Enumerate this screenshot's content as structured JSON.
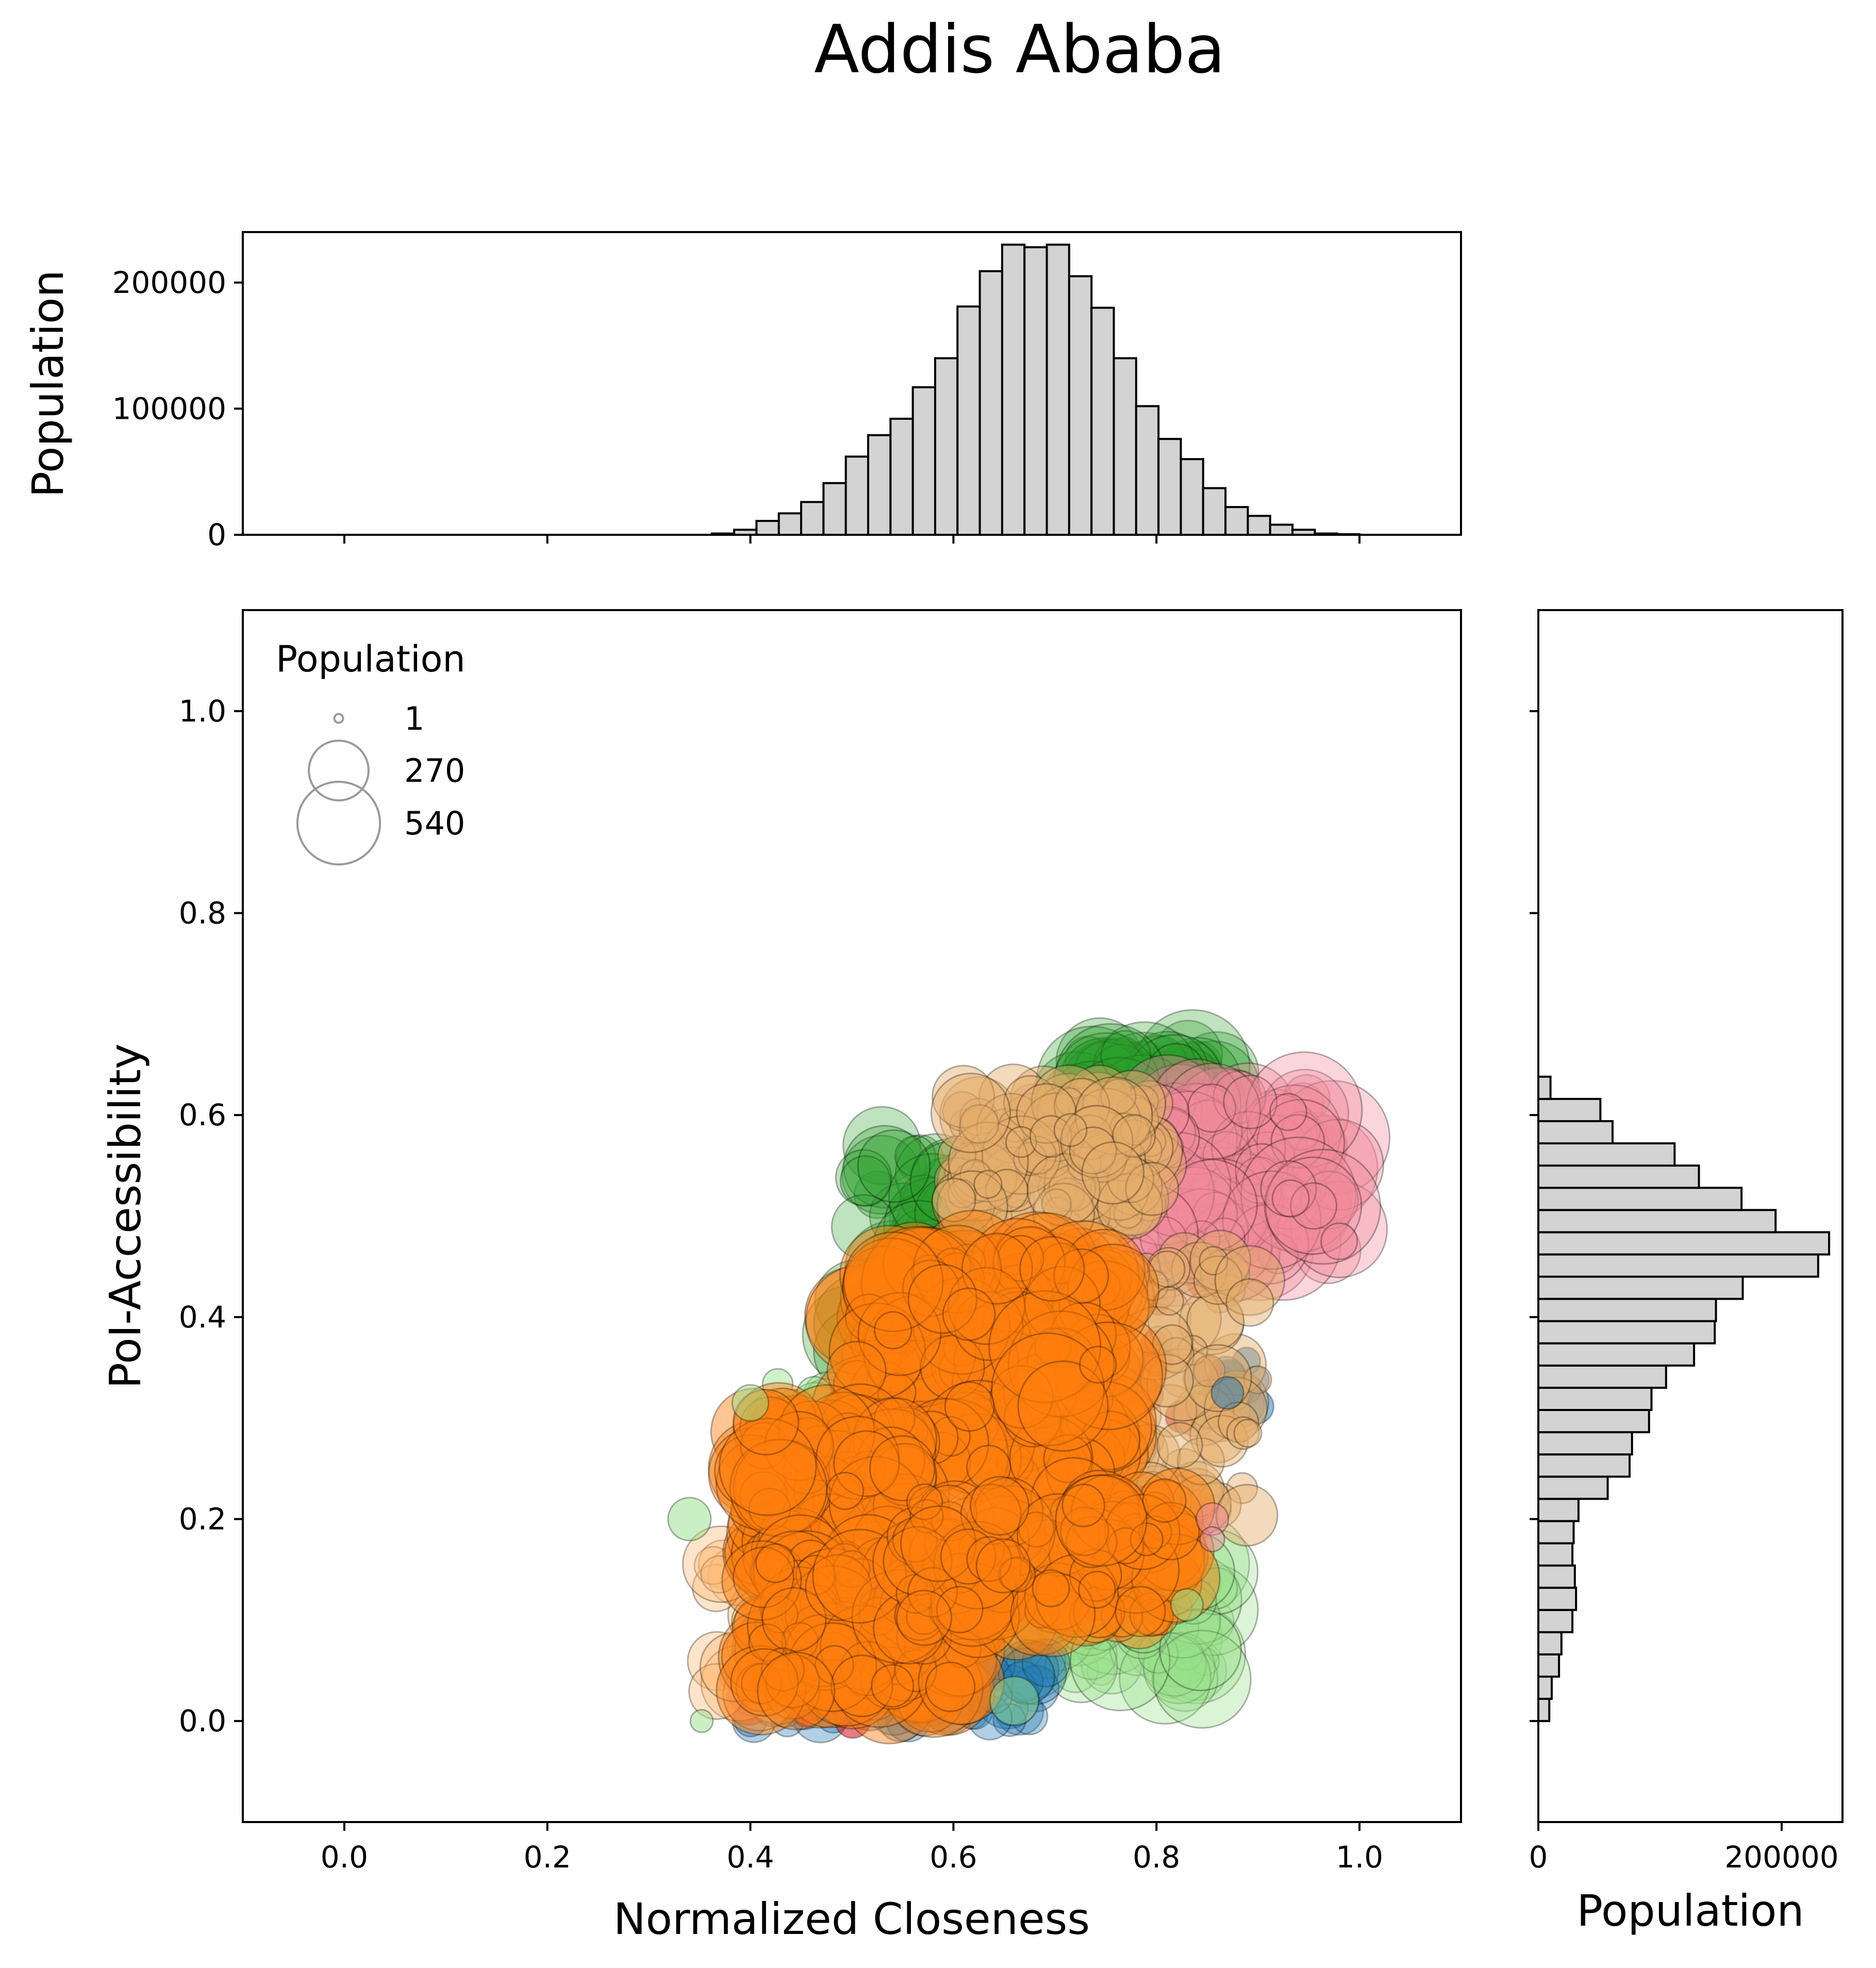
{
  "title": "Addis Ababa",
  "chart_data": [
    {
      "type": "scatter",
      "name": "main-scatter",
      "xlabel": "Normalized Closeness",
      "ylabel": "PoI-Accessibility",
      "xlim": [
        -0.1,
        1.1
      ],
      "ylim": [
        -0.1,
        1.1
      ],
      "xticks": [
        0.0,
        0.2,
        0.4,
        0.6,
        0.8,
        1.0
      ],
      "yticks": [
        0.0,
        0.2,
        0.4,
        0.6,
        0.8,
        1.0
      ],
      "grid": false,
      "legend": {
        "title": "Population",
        "placement": "top-left",
        "entries": [
          {
            "label": "1",
            "value": 1
          },
          {
            "label": "270",
            "value": 270
          },
          {
            "label": "540",
            "value": 540
          }
        ]
      },
      "colors": [
        "#ff7f0e",
        "#2ca02c",
        "#1f77b4",
        "#d62728",
        "#ffbb78",
        "#98df8a",
        "#ff9896",
        "#e5ae6b",
        "#f08a9a"
      ],
      "clusters": [
        {
          "color": "#2ca02c",
          "alpha": 0.3,
          "x": [
            0.72,
            0.86
          ],
          "y": [
            0.6,
            0.66
          ],
          "size": [
            60,
            520
          ],
          "count": 60
        },
        {
          "color": "#2ca02c",
          "alpha": 0.3,
          "x": [
            0.5,
            0.6
          ],
          "y": [
            0.36,
            0.58
          ],
          "size": [
            40,
            400
          ],
          "count": 60
        },
        {
          "color": "#98df8a",
          "alpha": 0.35,
          "x": [
            0.66,
            0.86
          ],
          "y": [
            0.04,
            0.16
          ],
          "size": [
            20,
            400
          ],
          "count": 90
        },
        {
          "color": "#98df8a",
          "alpha": 0.45,
          "x": [
            0.42,
            0.48
          ],
          "y": [
            0.26,
            0.34
          ],
          "size": [
            20,
            120
          ],
          "count": 20
        },
        {
          "color": "#1f77b4",
          "alpha": 0.35,
          "x": [
            0.4,
            0.7
          ],
          "y": [
            0.0,
            0.06
          ],
          "size": [
            30,
            160
          ],
          "count": 80
        },
        {
          "color": "#1f77b4",
          "alpha": 0.5,
          "x": [
            0.84,
            0.9
          ],
          "y": [
            0.3,
            0.36
          ],
          "size": [
            20,
            60
          ],
          "count": 15
        },
        {
          "color": "#d62728",
          "alpha": 0.6,
          "x": [
            0.38,
            0.58
          ],
          "y": [
            0.0,
            0.08
          ],
          "size": [
            10,
            100
          ],
          "count": 40
        },
        {
          "color": "#d62728",
          "alpha": 0.6,
          "x": [
            0.56,
            0.86
          ],
          "y": [
            0.3,
            0.48
          ],
          "size": [
            10,
            60
          ],
          "count": 35
        },
        {
          "color": "#f08a9a",
          "alpha": 0.35,
          "x": [
            0.78,
            0.98
          ],
          "y": [
            0.46,
            0.62
          ],
          "size": [
            40,
            540
          ],
          "count": 120
        },
        {
          "color": "#e5ae6b",
          "alpha": 0.45,
          "x": [
            0.6,
            0.8
          ],
          "y": [
            0.5,
            0.62
          ],
          "size": [
            20,
            240
          ],
          "count": 140
        },
        {
          "color": "#e5ae6b",
          "alpha": 0.45,
          "x": [
            0.74,
            0.9
          ],
          "y": [
            0.2,
            0.46
          ],
          "size": [
            20,
            200
          ],
          "count": 90
        },
        {
          "color": "#ffbb78",
          "alpha": 0.4,
          "x": [
            0.36,
            0.44
          ],
          "y": [
            0.02,
            0.16
          ],
          "size": [
            40,
            220
          ],
          "count": 30
        },
        {
          "color": "#ff7f0e",
          "alpha": 0.45,
          "x": [
            0.5,
            0.76
          ],
          "y": [
            0.24,
            0.46
          ],
          "size": [
            40,
            520
          ],
          "count": 220
        },
        {
          "color": "#ff7f0e",
          "alpha": 0.45,
          "x": [
            0.4,
            0.56
          ],
          "y": [
            0.14,
            0.3
          ],
          "size": [
            40,
            380
          ],
          "count": 140
        },
        {
          "color": "#ff7f0e",
          "alpha": 0.45,
          "x": [
            0.4,
            0.62
          ],
          "y": [
            0.02,
            0.16
          ],
          "size": [
            40,
            400
          ],
          "count": 150
        },
        {
          "color": "#ff7f0e",
          "alpha": 0.45,
          "x": [
            0.56,
            0.82
          ],
          "y": [
            0.1,
            0.22
          ],
          "size": [
            30,
            320
          ],
          "count": 140
        }
      ],
      "outliers": [
        {
          "x": 0.34,
          "y": 0.2,
          "value": 60,
          "color": "#98df8a"
        },
        {
          "x": 0.352,
          "y": 0.0,
          "value": 12,
          "color": "#98df8a"
        },
        {
          "x": 0.98,
          "y": 0.475,
          "value": 40,
          "color": "#f08a9a"
        },
        {
          "x": 0.89,
          "y": 0.285,
          "value": 20,
          "color": "#e5ae6b"
        },
        {
          "x": 0.855,
          "y": 0.2,
          "value": 30,
          "color": "#f08a9a"
        },
        {
          "x": 0.855,
          "y": 0.18,
          "value": 15,
          "color": "#f08a9a"
        },
        {
          "x": 0.83,
          "y": 0.115,
          "value": 30,
          "color": "#98df8a"
        },
        {
          "x": 0.87,
          "y": 0.325,
          "value": 30,
          "color": "#1f77b4"
        },
        {
          "x": 0.4,
          "y": 0.315,
          "value": 40,
          "color": "#98df8a"
        },
        {
          "x": 0.66,
          "y": 0.02,
          "value": 80,
          "color": "#98df8a"
        }
      ]
    },
    {
      "type": "bar",
      "name": "top-histogram",
      "orientation": "vertical",
      "ylabel": "Population",
      "xlim": [
        -0.1,
        1.1
      ],
      "ylim": [
        0,
        240000
      ],
      "yticks": [
        0,
        100000,
        200000
      ],
      "bar_color": "#d3d3d3",
      "bin_width": 0.022,
      "bin_starts": [
        0.362,
        0.384,
        0.406,
        0.428,
        0.45,
        0.472,
        0.494,
        0.516,
        0.538,
        0.56,
        0.582,
        0.604,
        0.626,
        0.648,
        0.67,
        0.692,
        0.714,
        0.736,
        0.758,
        0.78,
        0.802,
        0.824,
        0.846,
        0.868,
        0.89,
        0.912,
        0.934,
        0.956,
        0.978
      ],
      "values": [
        1000,
        4000,
        11000,
        17000,
        26000,
        41000,
        62000,
        79000,
        92000,
        117000,
        140000,
        181000,
        209000,
        230000,
        228000,
        230000,
        205000,
        180000,
        140000,
        102000,
        76000,
        60000,
        37000,
        22000,
        15000,
        8000,
        4000,
        1000,
        500
      ]
    },
    {
      "type": "bar",
      "name": "right-histogram",
      "orientation": "horizontal",
      "xlabel": "Population",
      "xlim": [
        0,
        250000
      ],
      "xticks": [
        0,
        200000
      ],
      "bar_color": "#d3d3d3",
      "bin_width": 0.022,
      "bin_starts": [
        0.0,
        0.022,
        0.044,
        0.066,
        0.088,
        0.11,
        0.132,
        0.154,
        0.176,
        0.198,
        0.22,
        0.242,
        0.264,
        0.286,
        0.308,
        0.33,
        0.352,
        0.374,
        0.396,
        0.418,
        0.44,
        0.462,
        0.484,
        0.506,
        0.528,
        0.55,
        0.572,
        0.594,
        0.616
      ],
      "values": [
        9000,
        11000,
        17000,
        19000,
        28000,
        31000,
        30000,
        28000,
        29000,
        33000,
        57000,
        75000,
        77000,
        91000,
        93000,
        105000,
        128000,
        145000,
        146000,
        168000,
        230000,
        239000,
        195000,
        167000,
        132000,
        112000,
        61000,
        51000,
        10000
      ]
    }
  ]
}
